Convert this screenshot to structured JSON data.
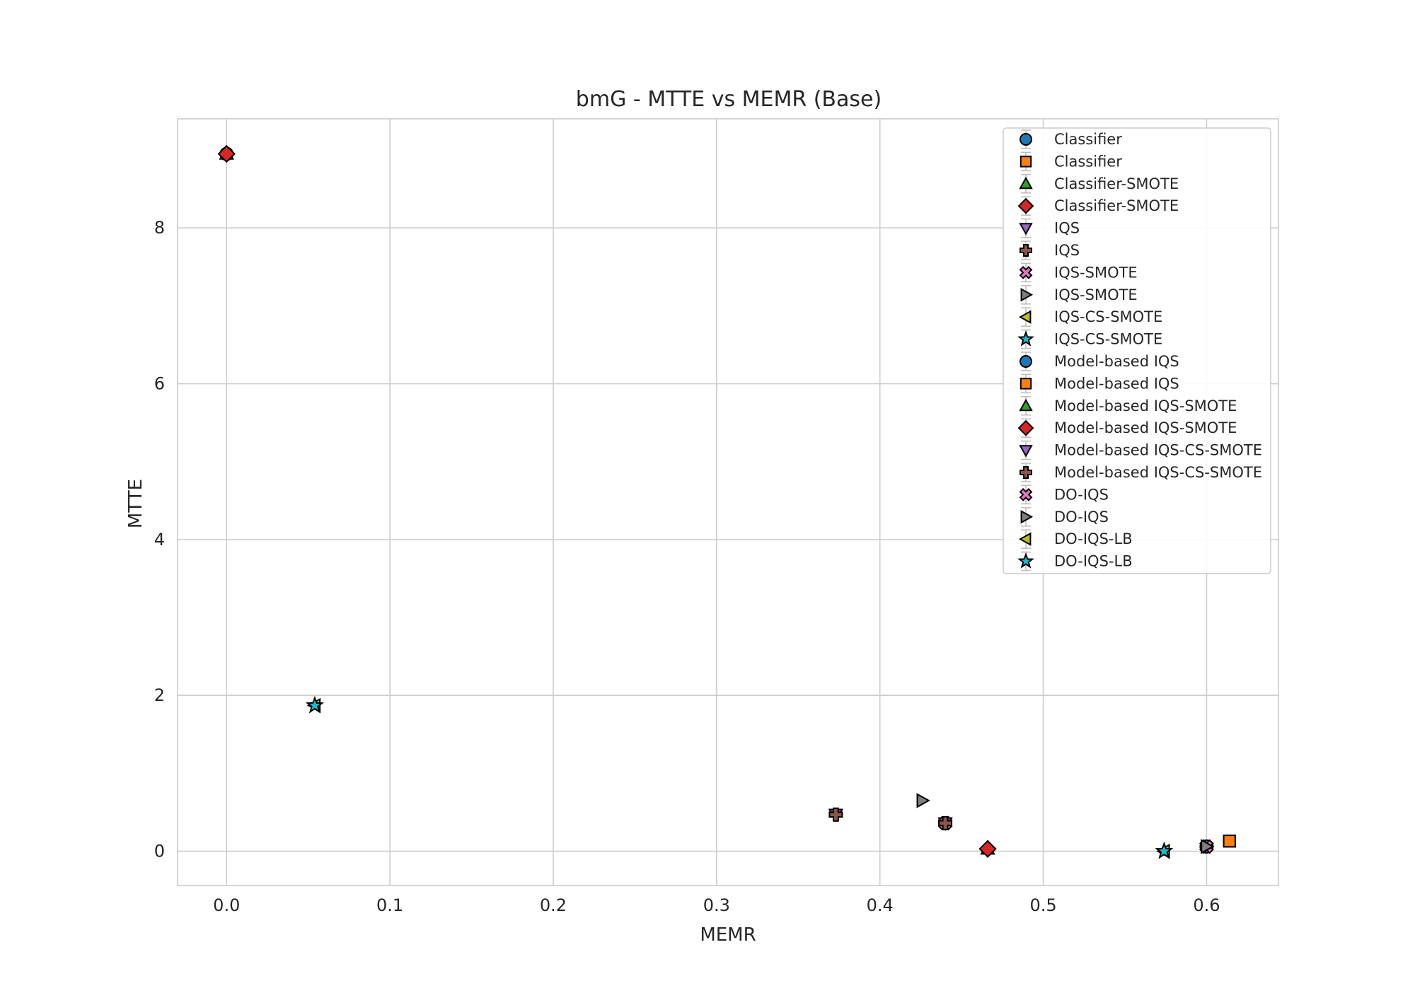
{
  "chart_data": {
    "type": "scatter",
    "title": "bmG - MTTE vs MEMR (Base)",
    "xlabel": "MEMR",
    "ylabel": "MTTE",
    "xlim": [
      -0.03,
      0.644
    ],
    "ylim": [
      -0.44,
      9.4
    ],
    "xticks": [
      0.0,
      0.1,
      0.2,
      0.3,
      0.4,
      0.5,
      0.6
    ],
    "xtick_labels": [
      "0.0",
      "0.1",
      "0.2",
      "0.3",
      "0.4",
      "0.5",
      "0.6"
    ],
    "yticks": [
      0,
      2,
      4,
      6,
      8
    ],
    "ytick_labels": [
      "0",
      "2",
      "4",
      "6",
      "8"
    ],
    "grid": true,
    "legend_position": "top-right",
    "series": [
      {
        "name": "Classifier",
        "marker": "circle",
        "color": "#1f77b4",
        "x": 0.0,
        "y": 8.95
      },
      {
        "name": "Classifier",
        "marker": "square",
        "color": "#ff7f0e",
        "x": 0.614,
        "y": 0.13
      },
      {
        "name": "Classifier-SMOTE",
        "marker": "triangle-up",
        "color": "#2ca02c",
        "x": 0.0,
        "y": 8.95
      },
      {
        "name": "Classifier-SMOTE",
        "marker": "diamond",
        "color": "#d62728",
        "x": 0.0,
        "y": 8.95
      },
      {
        "name": "IQS",
        "marker": "triangle-down",
        "color": "#9467bd",
        "x": 0.373,
        "y": 0.47
      },
      {
        "name": "IQS",
        "marker": "plus",
        "color": "#8c564b",
        "x": 0.373,
        "y": 0.47
      },
      {
        "name": "IQS-SMOTE",
        "marker": "x",
        "color": "#e377c2",
        "x": 0.44,
        "y": 0.36
      },
      {
        "name": "IQS-SMOTE",
        "marker": "triangle-right",
        "color": "#7f7f7f",
        "x": 0.426,
        "y": 0.65
      },
      {
        "name": "IQS-CS-SMOTE",
        "marker": "triangle-left",
        "color": "#bcbd22",
        "x": 0.054,
        "y": 1.87
      },
      {
        "name": "IQS-CS-SMOTE",
        "marker": "star",
        "color": "#17becf",
        "x": 0.054,
        "y": 1.87
      },
      {
        "name": "Model-based IQS",
        "marker": "circle",
        "color": "#1f77b4",
        "x": 0.6,
        "y": 0.06
      },
      {
        "name": "Model-based IQS",
        "marker": "square",
        "color": "#ff7f0e",
        "x": 0.614,
        "y": 0.13
      },
      {
        "name": "Model-based IQS-SMOTE",
        "marker": "triangle-up",
        "color": "#2ca02c",
        "x": 0.466,
        "y": 0.03
      },
      {
        "name": "Model-based IQS-SMOTE",
        "marker": "diamond",
        "color": "#d62728",
        "x": 0.466,
        "y": 0.03
      },
      {
        "name": "Model-based IQS-CS-SMOTE",
        "marker": "triangle-down",
        "color": "#9467bd",
        "x": 0.44,
        "y": 0.36
      },
      {
        "name": "Model-based IQS-CS-SMOTE",
        "marker": "plus",
        "color": "#8c564b",
        "x": 0.44,
        "y": 0.36
      },
      {
        "name": "DO-IQS",
        "marker": "x",
        "color": "#e377c2",
        "x": 0.6,
        "y": 0.06
      },
      {
        "name": "DO-IQS",
        "marker": "triangle-right",
        "color": "#7f7f7f",
        "x": 0.6,
        "y": 0.06
      },
      {
        "name": "DO-IQS-LB",
        "marker": "triangle-left",
        "color": "#bcbd22",
        "x": 0.574,
        "y": 0.0
      },
      {
        "name": "DO-IQS-LB",
        "marker": "star",
        "color": "#17becf",
        "x": 0.574,
        "y": 0.0
      }
    ]
  }
}
